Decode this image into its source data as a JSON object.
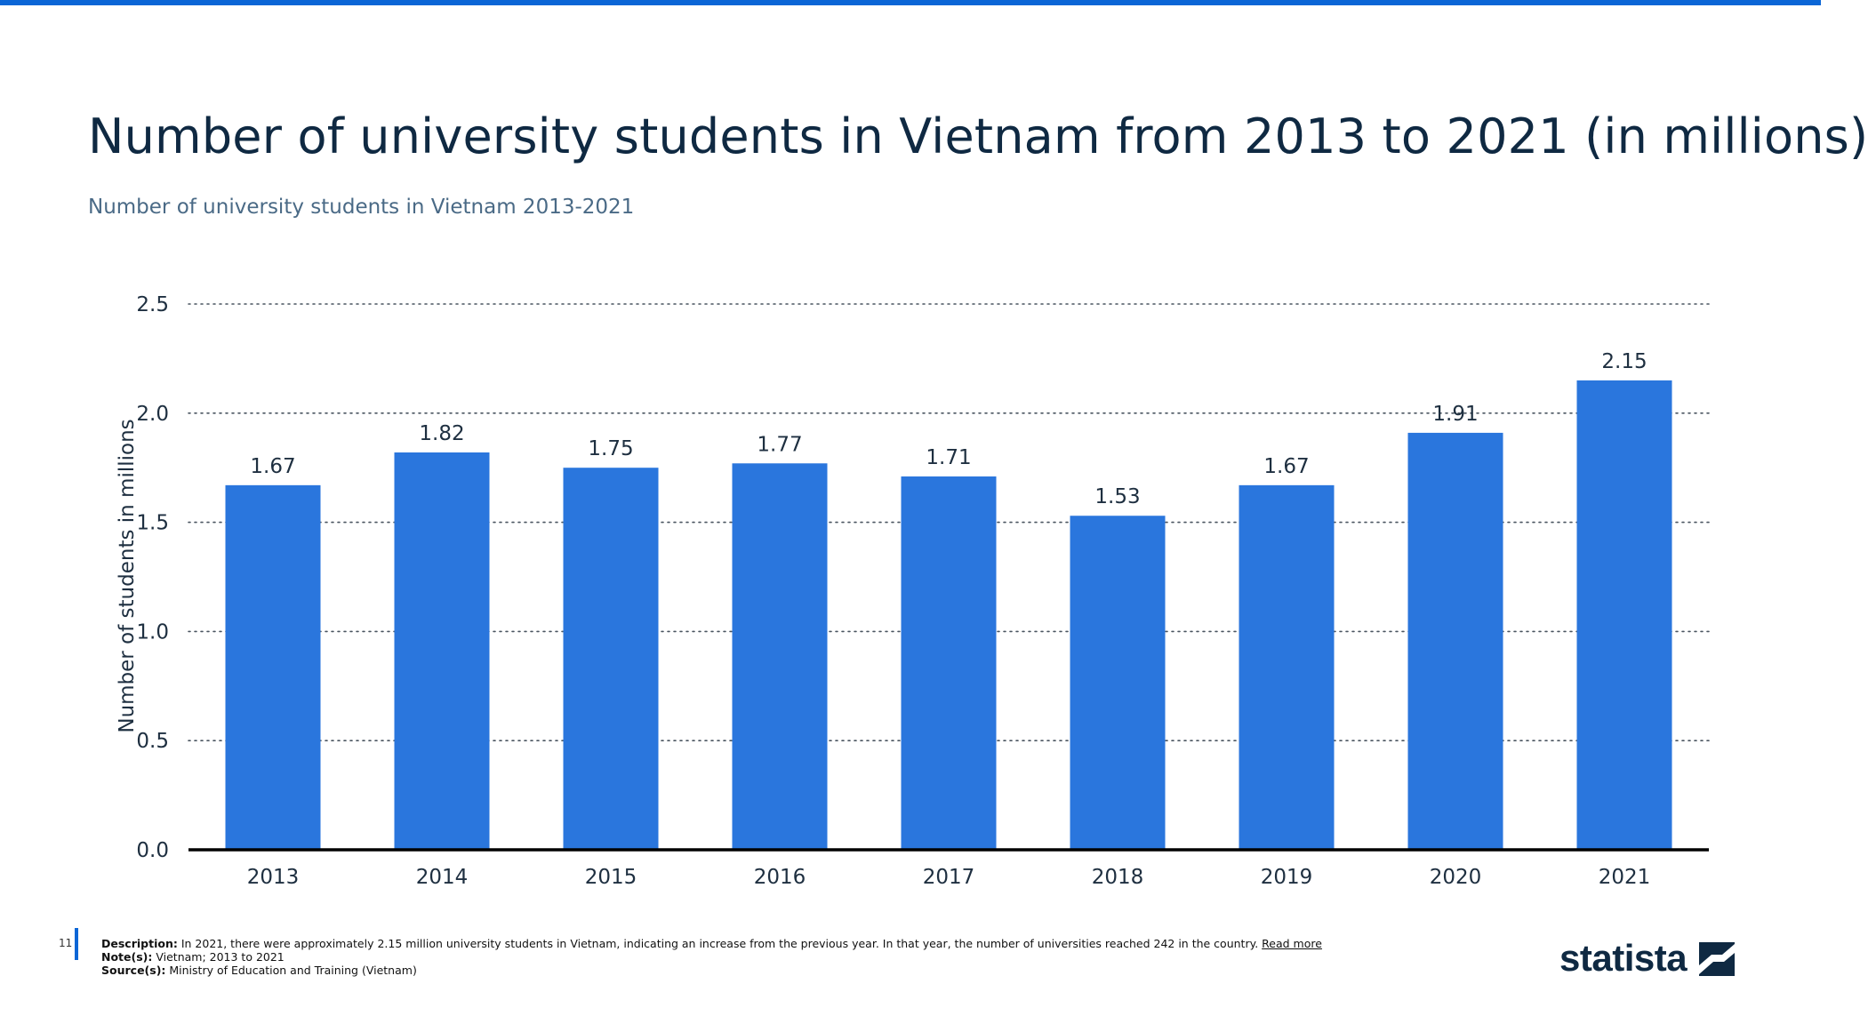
{
  "header": {
    "title": "Number of university students in Vietnam from 2013 to 2021 (in millions)",
    "subtitle": "Number of university students in Vietnam 2013-2021"
  },
  "chart_data": {
    "type": "bar",
    "categories": [
      "2013",
      "2014",
      "2015",
      "2016",
      "2017",
      "2018",
      "2019",
      "2020",
      "2021"
    ],
    "values": [
      1.67,
      1.82,
      1.75,
      1.77,
      1.71,
      1.53,
      1.67,
      1.91,
      2.15
    ],
    "value_labels": [
      "1.67",
      "1.82",
      "1.75",
      "1.77",
      "1.71",
      "1.53",
      "1.67",
      "1.91",
      "2.15"
    ],
    "ylabel": "Number of students in millions",
    "xlabel": "",
    "ylim": [
      0,
      2.5
    ],
    "yticks": [
      "0.0",
      "0.5",
      "1.0",
      "1.5",
      "2.0",
      "2.5"
    ],
    "ytick_values": [
      0,
      0.5,
      1.0,
      1.5,
      2.0,
      2.5
    ],
    "grid": "dotted horizontal",
    "legend": "none",
    "bar_color": "#2a76dd"
  },
  "footer": {
    "page_number": "11",
    "description_label": "Description:",
    "description": " In 2021, there were approximately 2.15 million university students in Vietnam, indicating an increase from the previous year. In that year, the number of universities reached 242 in the country. ",
    "read_more": "Read more",
    "notes_label": "Note(s):",
    "notes": " Vietnam; 2013 to 2021",
    "source_label": "Source(s):",
    "source": " Ministry of Education and Training (Vietnam)",
    "logo_text": "statista"
  },
  "colors": {
    "accent": "#0b66d6",
    "title": "#0f2942",
    "subtitle": "#4a6a86"
  }
}
